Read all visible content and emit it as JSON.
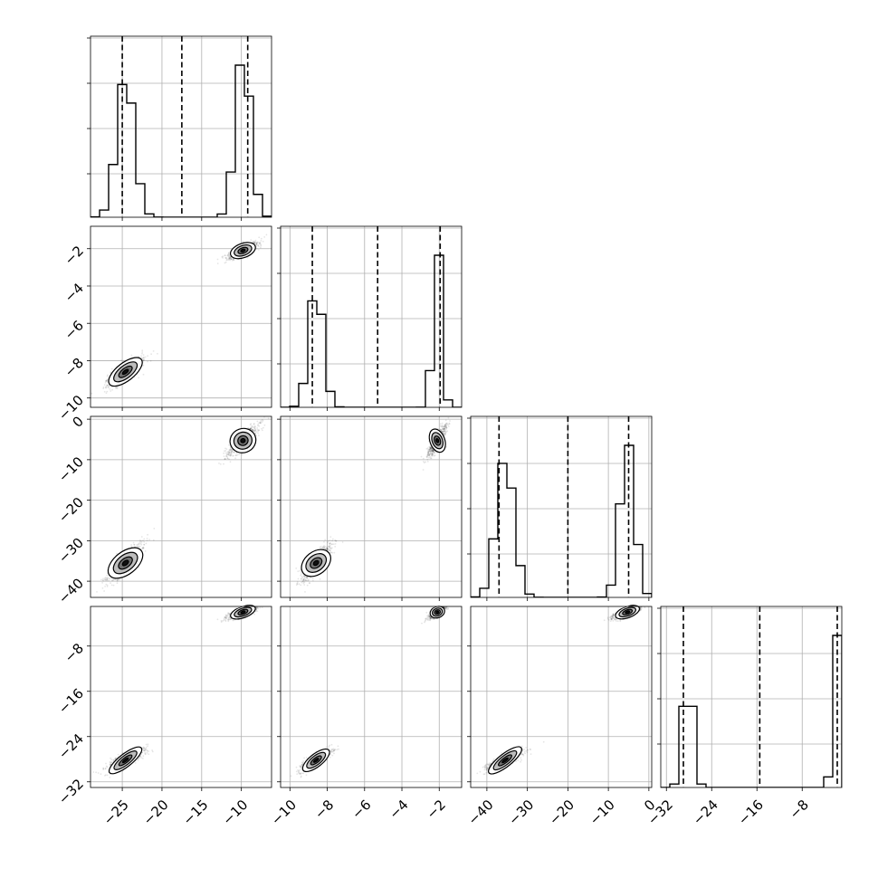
{
  "chart_data": {
    "type": "corner",
    "parameters": [
      {
        "range": [
          -29,
          -6.2
        ],
        "ticks": [
          -25,
          -20,
          -15,
          -10
        ],
        "tick_labels": [
          "−25",
          "−20",
          "−15",
          "−10"
        ],
        "modes": [
          {
            "mean": -24.6,
            "sd": 1.1,
            "peak": 0.86
          },
          {
            "mean": -9.8,
            "sd": 0.95,
            "peak": 1.0
          }
        ],
        "quantiles": [
          -25.0,
          -17.5,
          -9.2
        ]
      },
      {
        "range": [
          -10.5,
          -0.8
        ],
        "ticks": [
          -10,
          -8,
          -6,
          -4,
          -2
        ],
        "tick_labels": [
          "−10",
          "−8",
          "−6",
          "−4",
          "−2"
        ],
        "modes": [
          {
            "mean": -8.6,
            "sd": 0.38,
            "peak": 0.75
          },
          {
            "mean": -2.1,
            "sd": 0.23,
            "peak": 1.0
          }
        ],
        "quantiles": [
          -8.8,
          -5.3,
          -1.95
        ]
      },
      {
        "range": [
          -44,
          0.7
        ],
        "ticks": [
          -40,
          -30,
          -20,
          -10,
          0
        ],
        "tick_labels": [
          "−40",
          "−30",
          "−20",
          "−10",
          "0"
        ],
        "modes": [
          {
            "mean": -35.5,
            "sd": 2.2,
            "peak": 0.9
          },
          {
            "mean": -5.3,
            "sd": 1.8,
            "peak": 1.0
          }
        ],
        "quantiles": [
          -37.0,
          -20.0,
          -5.0
        ]
      },
      {
        "range": [
          -33,
          -1
        ],
        "ticks": [
          -32,
          -24,
          -16,
          -8
        ],
        "tick_labels": [
          "−32",
          "−24",
          "−16",
          "−8"
        ],
        "modes": [
          {
            "mean": -28.2,
            "sd": 0.9,
            "peak": 0.75
          },
          {
            "mean": -2.0,
            "sd": 0.6,
            "peak": 1.0
          }
        ],
        "quantiles": [
          -29.0,
          -15.5,
          -1.8
        ]
      }
    ],
    "x_ticks_rotated_deg": 45,
    "grid": true,
    "histogram_bins": 20,
    "contour_fill": "#bdbdbd"
  }
}
